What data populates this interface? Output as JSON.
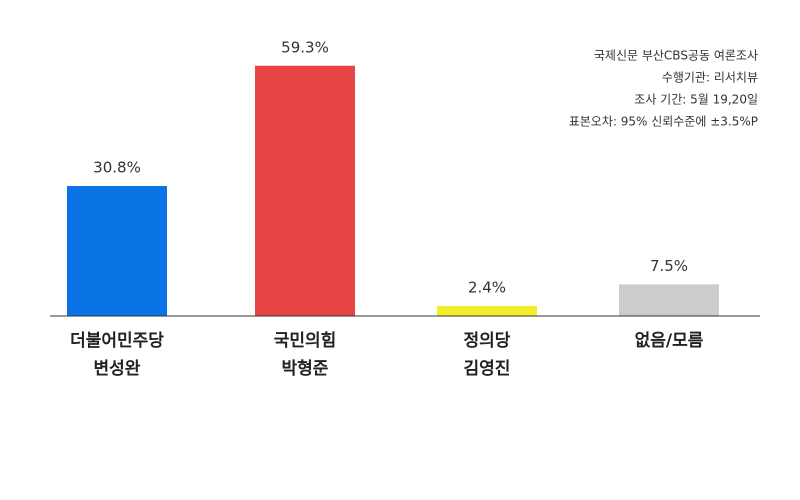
{
  "chart_data": {
    "type": "bar",
    "categories": [
      [
        "더불어민주당",
        "변성완"
      ],
      [
        "국민의힘",
        "박형준"
      ],
      [
        "정의당",
        "김영진"
      ],
      [
        "없음/모름"
      ]
    ],
    "values": [
      30.8,
      59.3,
      2.4,
      7.5
    ],
    "value_labels": [
      "30.8%",
      "59.3%",
      "2.4%",
      "7.5%"
    ],
    "colors": [
      "#0a73e6",
      "#e64545",
      "#f2ec2c",
      "#cccccc"
    ],
    "annotations": [
      "국제신문 부산CBS공동 여론조사",
      "수행기관: 리서치뷰",
      "조사 기간: 5월 19,20일",
      "표본오차: 95% 신뢰수준에 ±3.5%P"
    ]
  }
}
